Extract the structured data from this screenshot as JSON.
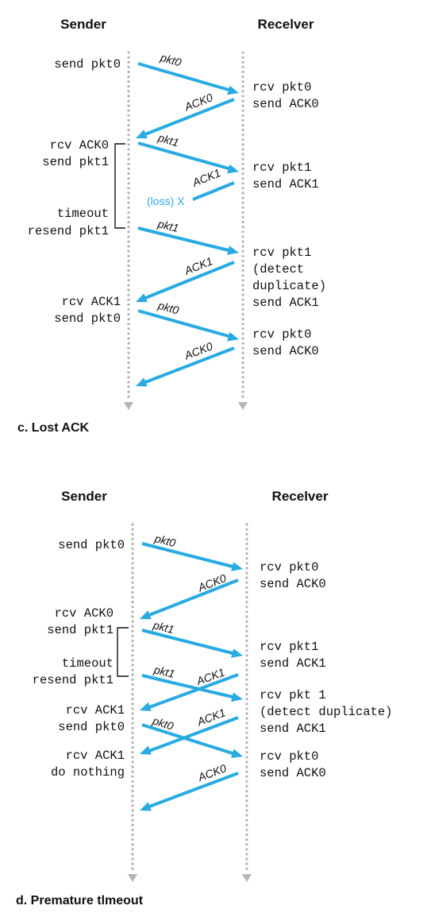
{
  "panels": [
    {
      "id": "lost-ack",
      "caption": "c. Lost ACK",
      "sender_heading": "Sender",
      "receiver_heading": "Recelver",
      "sender_events": [
        [
          "send pkt0"
        ],
        [
          "rcv ACK0",
          "send pkt1"
        ],
        [
          "timeout",
          "resend pkt1"
        ],
        [
          "rcv ACK1",
          "send pkt0"
        ]
      ],
      "receiver_events": [
        [
          "rcv pkt0",
          "send ACK0"
        ],
        [
          "rcv pkt1",
          "send ACK1"
        ],
        [
          "rcv pkt1",
          "(detect",
          "duplicate)",
          "send ACK1"
        ],
        [
          "rcv pkt0",
          "send ACK0"
        ]
      ],
      "messages": [
        {
          "label": "pkt0",
          "direction": "sender-to-receiver"
        },
        {
          "label": "ACK0",
          "direction": "receiver-to-sender"
        },
        {
          "label": "pkt1",
          "direction": "sender-to-receiver"
        },
        {
          "label": "ACK1",
          "direction": "receiver-to-sender",
          "lost": true
        },
        {
          "label": "pkt1",
          "direction": "sender-to-receiver"
        },
        {
          "label": "ACK1",
          "direction": "receiver-to-sender"
        },
        {
          "label": "pkt0",
          "direction": "sender-to-receiver"
        },
        {
          "label": "ACK0",
          "direction": "receiver-to-sender"
        }
      ],
      "loss_label": "(loss) X"
    },
    {
      "id": "premature-timeout",
      "caption": "d. Premature tlmeout",
      "sender_heading": "Sender",
      "receiver_heading": "Recelver",
      "sender_events": [
        [
          "send pkt0"
        ],
        [
          "rcv ACK0",
          "send pkt1"
        ],
        [
          "timeout",
          "resend pkt1"
        ],
        [
          "rcv ACK1",
          "send pkt0"
        ],
        [
          "rcv ACK1",
          "do nothing"
        ]
      ],
      "receiver_events": [
        [
          "rcv pkt0",
          "send ACK0"
        ],
        [
          "rcv pkt1",
          "send ACK1"
        ],
        [
          "rcv pkt 1",
          "(detect duplicate)",
          "send ACK1"
        ],
        [
          "rcv pkt0",
          "send ACK0"
        ]
      ],
      "messages": [
        {
          "label": "pkt0",
          "direction": "sender-to-receiver"
        },
        {
          "label": "ACK0",
          "direction": "receiver-to-sender"
        },
        {
          "label": "pkt1",
          "direction": "sender-to-receiver"
        },
        {
          "label": "pkt1",
          "direction": "sender-to-receiver"
        },
        {
          "label": "ACK1",
          "direction": "receiver-to-sender"
        },
        {
          "label": "ACK1",
          "direction": "receiver-to-sender"
        },
        {
          "label": "pkt0",
          "direction": "sender-to-receiver"
        },
        {
          "label": "ACK0",
          "direction": "receiver-to-sender"
        }
      ]
    }
  ]
}
